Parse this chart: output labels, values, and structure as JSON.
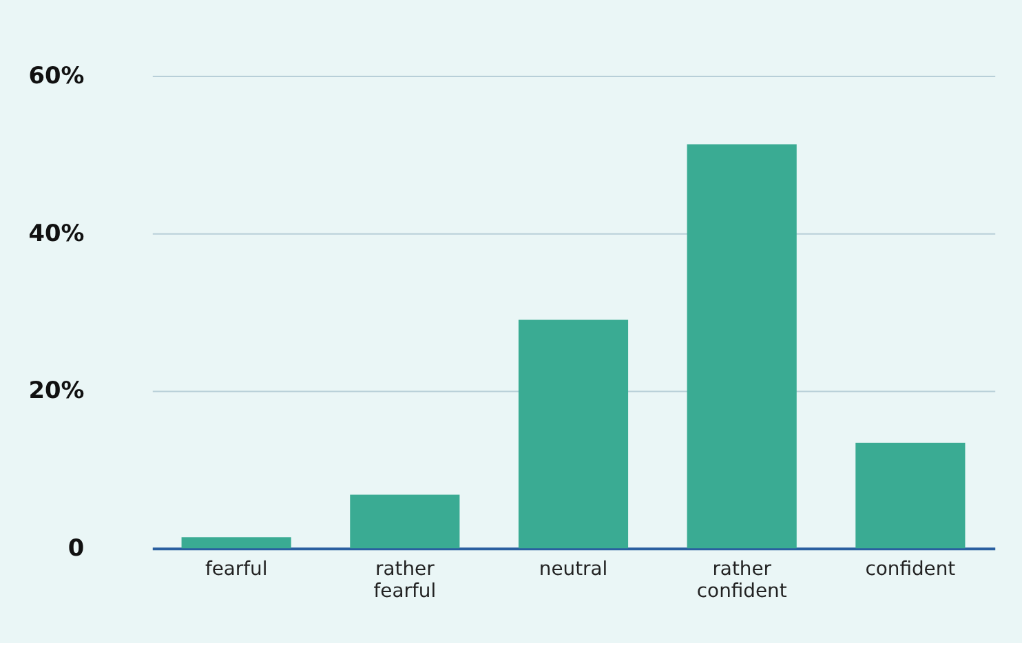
{
  "chart_data": {
    "type": "bar",
    "categories": [
      "fearful",
      "rather fearful",
      "neutral",
      "rather confident",
      "confident"
    ],
    "values": [
      1.4,
      6.8,
      29,
      51.3,
      13.4
    ],
    "color": "#3aab93",
    "ylim": [
      0,
      60
    ],
    "yticks": [
      0,
      {
        "value": 20,
        "label": "20%"
      },
      {
        "value": 40,
        "label": "40%"
      },
      {
        "value": 60,
        "label": "60%"
      }
    ],
    "grid": "y"
  }
}
